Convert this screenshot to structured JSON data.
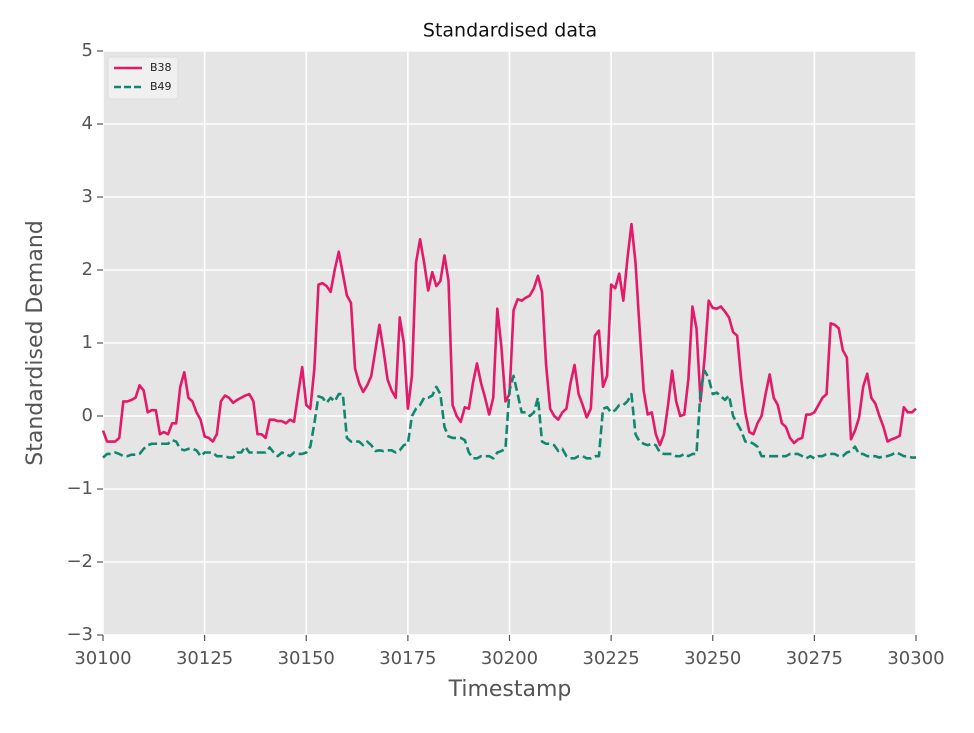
{
  "chart_data": {
    "type": "line",
    "title": "Standardised data",
    "x_label": "Timestamp",
    "y_label": "Standardised Demand",
    "x": [
      30100,
      30101,
      30102,
      30103,
      30104,
      30105,
      30106,
      30107,
      30108,
      30109,
      30110,
      30111,
      30112,
      30113,
      30114,
      30115,
      30116,
      30117,
      30118,
      30119,
      30120,
      30121,
      30122,
      30123,
      30124,
      30125,
      30126,
      30127,
      30128,
      30129,
      30130,
      30131,
      30132,
      30133,
      30134,
      30135,
      30136,
      30137,
      30138,
      30139,
      30140,
      30141,
      30142,
      30143,
      30144,
      30145,
      30146,
      30147,
      30148,
      30149,
      30150,
      30151,
      30152,
      30153,
      30154,
      30155,
      30156,
      30157,
      30158,
      30159,
      30160,
      30161,
      30162,
      30163,
      30164,
      30165,
      30166,
      30167,
      30168,
      30169,
      30170,
      30171,
      30172,
      30173,
      30174,
      30175,
      30176,
      30177,
      30178,
      30179,
      30180,
      30181,
      30182,
      30183,
      30184,
      30185,
      30186,
      30187,
      30188,
      30189,
      30190,
      30191,
      30192,
      30193,
      30194,
      30195,
      30196,
      30197,
      30198,
      30199,
      30200,
      30201,
      30202,
      30203,
      30204,
      30205,
      30206,
      30207,
      30208,
      30209,
      30210,
      30211,
      30212,
      30213,
      30214,
      30215,
      30216,
      30217,
      30218,
      30219,
      30220,
      30221,
      30222,
      30223,
      30224,
      30225,
      30226,
      30227,
      30228,
      30229,
      30230,
      30231,
      30232,
      30233,
      30234,
      30235,
      30236,
      30237,
      30238,
      30239,
      30240,
      30241,
      30242,
      30243,
      30244,
      30245,
      30246,
      30247,
      30248,
      30249,
      30250,
      30251,
      30252,
      30253,
      30254,
      30255,
      30256,
      30257,
      30258,
      30259,
      30260,
      30261,
      30262,
      30263,
      30264,
      30265,
      30266,
      30267,
      30268,
      30269,
      30270,
      30271,
      30272,
      30273,
      30274,
      30275,
      30276,
      30277,
      30278,
      30279,
      30280,
      30281,
      30282,
      30283,
      30284,
      30285,
      30286,
      30287,
      30288,
      30289,
      30290,
      30291,
      30292,
      30293,
      30294,
      30295,
      30296,
      30297,
      30298,
      30299,
      30300
    ],
    "series": [
      {
        "name": "B38",
        "color": "#e31a6a",
        "linestyle": "solid",
        "values": [
          -0.2,
          -0.35,
          -0.35,
          -0.35,
          -0.3,
          0.2,
          0.2,
          0.22,
          0.25,
          0.42,
          0.35,
          0.05,
          0.08,
          0.08,
          -0.25,
          -0.22,
          -0.25,
          -0.1,
          -0.1,
          0.4,
          0.6,
          0.25,
          0.2,
          0.05,
          -0.05,
          -0.28,
          -0.3,
          -0.35,
          -0.25,
          0.2,
          0.28,
          0.25,
          0.18,
          0.22,
          0.25,
          0.28,
          0.3,
          0.2,
          -0.25,
          -0.25,
          -0.3,
          -0.05,
          -0.05,
          -0.07,
          -0.07,
          -0.1,
          -0.05,
          -0.08,
          0.3,
          0.67,
          0.15,
          0.1,
          0.65,
          1.8,
          1.82,
          1.78,
          1.7,
          2.0,
          2.25,
          1.95,
          1.65,
          1.55,
          0.65,
          0.45,
          0.33,
          0.42,
          0.55,
          0.9,
          1.25,
          0.9,
          0.5,
          0.35,
          0.25,
          1.35,
          1.0,
          0.1,
          0.55,
          2.1,
          2.42,
          2.1,
          1.72,
          1.97,
          1.78,
          1.85,
          2.2,
          1.85,
          0.15,
          0.0,
          -0.08,
          0.12,
          0.1,
          0.45,
          0.72,
          0.45,
          0.25,
          0.02,
          0.25,
          1.47,
          0.95,
          0.2,
          0.3,
          1.45,
          1.6,
          1.58,
          1.62,
          1.65,
          1.75,
          1.92,
          1.7,
          0.7,
          0.1,
          0.0,
          -0.05,
          0.05,
          0.1,
          0.45,
          0.7,
          0.3,
          0.15,
          -0.02,
          0.1,
          1.1,
          1.17,
          0.4,
          0.55,
          1.8,
          1.75,
          1.95,
          1.58,
          2.15,
          2.63,
          2.1,
          1.2,
          0.35,
          0.02,
          0.05,
          -0.25,
          -0.4,
          -0.25,
          0.15,
          0.62,
          0.2,
          0.0,
          0.02,
          0.5,
          1.5,
          1.2,
          0.2,
          0.8,
          1.58,
          1.48,
          1.47,
          1.5,
          1.43,
          1.35,
          1.15,
          1.1,
          0.5,
          0.05,
          -0.22,
          -0.25,
          -0.1,
          0.0,
          0.3,
          0.57,
          0.25,
          0.15,
          -0.1,
          -0.15,
          -0.3,
          -0.37,
          -0.32,
          -0.3,
          0.02,
          0.02,
          0.05,
          0.15,
          0.25,
          0.3,
          1.27,
          1.25,
          1.2,
          0.9,
          0.8,
          -0.32,
          -0.2,
          -0.02,
          0.4,
          0.58,
          0.25,
          0.17,
          0.0,
          -0.15,
          -0.35,
          -0.32,
          -0.3,
          -0.27,
          0.12,
          0.05,
          0.05,
          0.1
        ]
      },
      {
        "name": "B49",
        "color": "#12876f",
        "linestyle": "dashed",
        "values": [
          -0.57,
          -0.52,
          -0.52,
          -0.5,
          -0.52,
          -0.55,
          -0.55,
          -0.53,
          -0.53,
          -0.52,
          -0.45,
          -0.4,
          -0.38,
          -0.38,
          -0.38,
          -0.38,
          -0.38,
          -0.33,
          -0.35,
          -0.45,
          -0.47,
          -0.45,
          -0.45,
          -0.47,
          -0.55,
          -0.5,
          -0.5,
          -0.5,
          -0.55,
          -0.55,
          -0.55,
          -0.57,
          -0.57,
          -0.5,
          -0.5,
          -0.42,
          -0.5,
          -0.5,
          -0.5,
          -0.5,
          -0.5,
          -0.43,
          -0.5,
          -0.55,
          -0.5,
          -0.52,
          -0.55,
          -0.5,
          -0.52,
          -0.52,
          -0.5,
          -0.42,
          -0.1,
          0.27,
          0.25,
          0.18,
          0.25,
          0.2,
          0.3,
          0.3,
          -0.3,
          -0.35,
          -0.35,
          -0.35,
          -0.4,
          -0.35,
          -0.4,
          -0.48,
          -0.47,
          -0.48,
          -0.47,
          -0.47,
          -0.5,
          -0.47,
          -0.4,
          -0.38,
          0.0,
          0.1,
          0.15,
          0.25,
          0.25,
          0.28,
          0.4,
          0.3,
          -0.15,
          -0.28,
          -0.3,
          -0.3,
          -0.3,
          -0.33,
          -0.5,
          -0.58,
          -0.58,
          -0.55,
          -0.55,
          -0.55,
          -0.58,
          -0.5,
          -0.48,
          -0.45,
          0.35,
          0.55,
          0.3,
          0.05,
          0.05,
          0.0,
          0.05,
          0.25,
          -0.35,
          -0.38,
          -0.38,
          -0.4,
          -0.48,
          -0.45,
          -0.55,
          -0.58,
          -0.58,
          -0.55,
          -0.55,
          -0.58,
          -0.58,
          -0.55,
          -0.55,
          0.1,
          0.12,
          0.05,
          0.08,
          0.15,
          0.15,
          0.2,
          0.3,
          -0.25,
          -0.35,
          -0.38,
          -0.4,
          -0.38,
          -0.4,
          -0.5,
          -0.52,
          -0.52,
          -0.52,
          -0.55,
          -0.55,
          -0.52,
          -0.55,
          -0.52,
          -0.52,
          0.35,
          0.62,
          0.52,
          0.3,
          0.32,
          0.27,
          0.22,
          0.28,
          0.0,
          -0.1,
          -0.2,
          -0.35,
          -0.35,
          -0.38,
          -0.42,
          -0.55,
          -0.55,
          -0.55,
          -0.55,
          -0.55,
          -0.55,
          -0.55,
          -0.52,
          -0.52,
          -0.52,
          -0.55,
          -0.58,
          -0.55,
          -0.58,
          -0.55,
          -0.55,
          -0.52,
          -0.52,
          -0.52,
          -0.55,
          -0.55,
          -0.5,
          -0.48,
          -0.42,
          -0.52,
          -0.52,
          -0.55,
          -0.55,
          -0.55,
          -0.57,
          -0.55,
          -0.55,
          -0.53,
          -0.5,
          -0.52,
          -0.55,
          -0.55,
          -0.57,
          -0.57
        ]
      }
    ],
    "xlim": [
      30100,
      30300
    ],
    "xticks": [
      30100,
      30125,
      30150,
      30175,
      30200,
      30225,
      30250,
      30275,
      30300
    ],
    "ylim": [
      -3,
      5
    ],
    "yticks": [
      {
        "value": -3,
        "label": "−3"
      },
      {
        "value": -2,
        "label": "−2"
      },
      {
        "value": -1,
        "label": "−1"
      },
      0,
      1,
      2,
      3,
      4,
      5
    ],
    "grid": true,
    "legend": "upper left"
  }
}
